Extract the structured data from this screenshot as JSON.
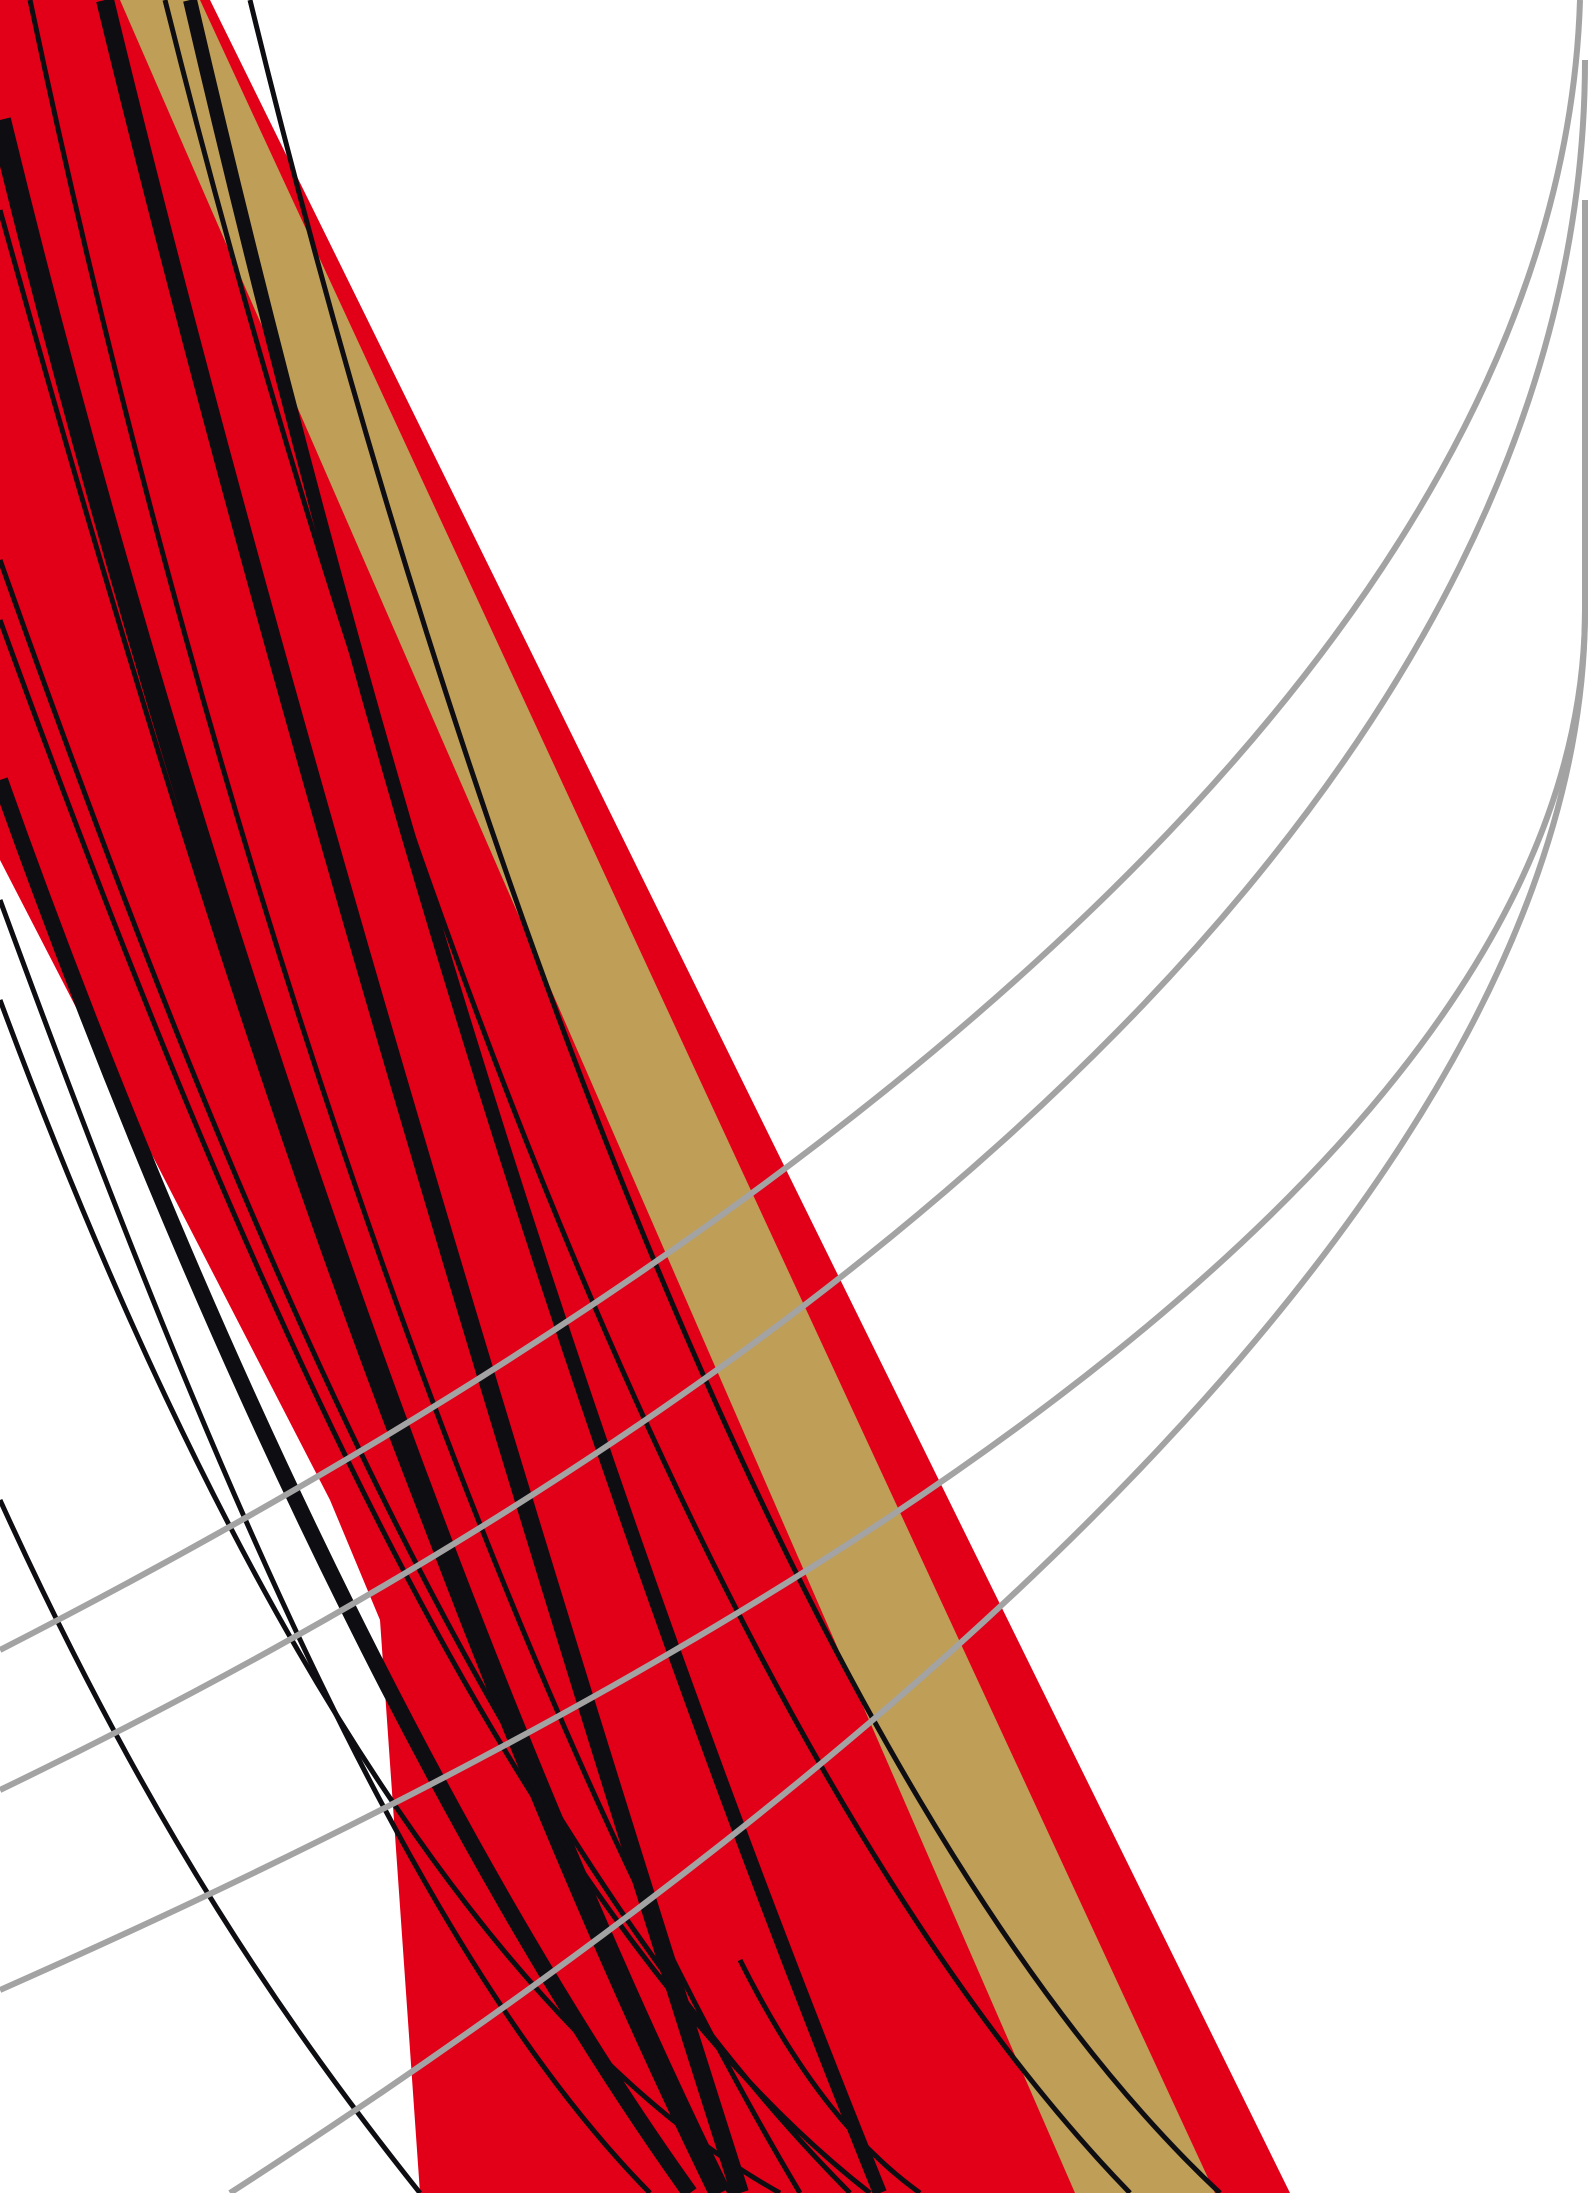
{
  "colors": {
    "background": "#ffffff",
    "red": "#e10018",
    "gold": "#bf9e57",
    "black": "#0d0d12",
    "gray": "#a3a3a3"
  }
}
